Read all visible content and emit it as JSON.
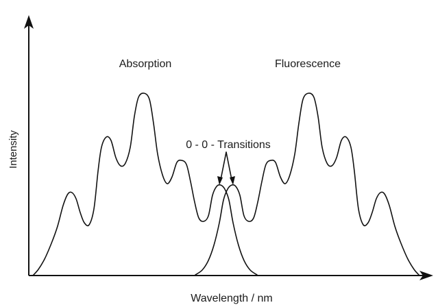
{
  "diagram": {
    "y_axis_label": "Intensity",
    "x_axis_label": "Wavelength / nm",
    "absorption_label": "Absorption",
    "fluorescence_label": "Fluorescence",
    "transition_label": "0 - 0 - Transitions"
  },
  "colors": {
    "line": "#111111",
    "text": "#1a1a1a",
    "background": "#ffffff"
  }
}
